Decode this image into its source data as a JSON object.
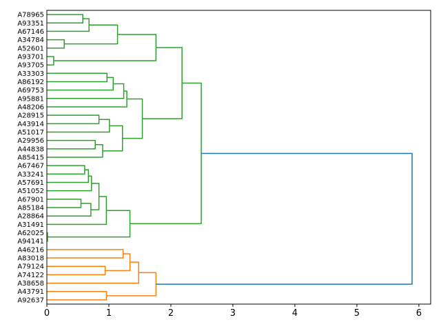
{
  "chart_data": {
    "type": "dendrogram",
    "orientation": "right",
    "title": "",
    "xlabel": "",
    "ylabel": "",
    "xlim": [
      0,
      6.19
    ],
    "xticks": [
      0,
      1,
      2,
      3,
      4,
      5,
      6
    ],
    "colors": {
      "green": "#2ca02c",
      "orange": "#ff7f0e",
      "root": "#1f77b4"
    },
    "tree": {
      "h": 5.89,
      "color": "root",
      "c": [
        {
          "h": 2.49,
          "color": "green",
          "c": [
            {
              "h": 2.18,
              "color": "green",
              "c": [
                {
                  "h": 1.76,
                  "color": "green",
                  "c": [
                    {
                      "h": 1.14,
                      "color": "green",
                      "c": [
                        {
                          "h": 0.68,
                          "color": "green",
                          "c": [
                            {
                              "h": 0.58,
                              "color": "green",
                              "c": [
                                "A78965",
                                "A93351"
                              ]
                            },
                            "A67146"
                          ]
                        },
                        {
                          "h": 0.28,
                          "color": "green",
                          "c": [
                            "A34784",
                            "A52601"
                          ]
                        }
                      ]
                    },
                    {
                      "h": 0.11,
                      "color": "green",
                      "c": [
                        "A93701",
                        "A93705"
                      ]
                    }
                  ]
                },
                {
                  "h": 1.54,
                  "color": "green",
                  "c": [
                    {
                      "h": 1.29,
                      "color": "green",
                      "c": [
                        {
                          "h": 1.24,
                          "color": "green",
                          "c": [
                            {
                              "h": 1.07,
                              "color": "green",
                              "c": [
                                {
                                  "h": 0.97,
                                  "color": "green",
                                  "c": [
                                    "A33303",
                                    "A86192"
                                  ]
                                },
                                "A69753"
                              ]
                            },
                            "A95881"
                          ]
                        },
                        "A48206"
                      ]
                    },
                    {
                      "h": 1.22,
                      "color": "green",
                      "c": [
                        {
                          "h": 1.01,
                          "color": "green",
                          "c": [
                            {
                              "h": 0.84,
                              "color": "green",
                              "c": [
                                "A28915",
                                "A43914"
                              ]
                            },
                            "A51017"
                          ]
                        },
                        {
                          "h": 0.9,
                          "color": "green",
                          "c": [
                            {
                              "h": 0.78,
                              "color": "green",
                              "c": [
                                "A29956",
                                "A44838"
                              ]
                            },
                            "A85415"
                          ]
                        }
                      ]
                    }
                  ]
                }
              ]
            },
            {
              "h": 1.34,
              "color": "green",
              "c": [
                {
                  "h": 0.96,
                  "color": "green",
                  "c": [
                    {
                      "h": 0.84,
                      "color": "green",
                      "c": [
                        {
                          "h": 0.72,
                          "color": "green",
                          "c": [
                            {
                              "h": 0.67,
                              "color": "green",
                              "c": [
                                {
                                  "h": 0.61,
                                  "color": "green",
                                  "c": [
                                    "A67467",
                                    "A33241"
                                  ]
                                },
                                "A57691"
                              ]
                            },
                            "A51052"
                          ]
                        },
                        {
                          "h": 0.71,
                          "color": "green",
                          "c": [
                            {
                              "h": 0.55,
                              "color": "green",
                              "c": [
                                "A67901",
                                "A85184"
                              ]
                            },
                            "A28864"
                          ]
                        }
                      ]
                    },
                    "A31491"
                  ]
                },
                {
                  "h": 0.01,
                  "color": "green",
                  "c": [
                    "A62025",
                    "A94141"
                  ]
                }
              ]
            }
          ]
        },
        {
          "h": 1.76,
          "color": "orange",
          "c": [
            {
              "h": 1.48,
              "color": "orange",
              "c": [
                {
                  "h": 1.34,
                  "color": "orange",
                  "c": [
                    {
                      "h": 1.23,
                      "color": "orange",
                      "c": [
                        "A46216",
                        "A83018"
                      ]
                    },
                    {
                      "h": 0.94,
                      "color": "orange",
                      "c": [
                        "A79124",
                        "A74122"
                      ]
                    }
                  ]
                },
                "A38658"
              ]
            },
            {
              "h": 0.96,
              "color": "orange",
              "c": [
                "A43791",
                "A92637"
              ]
            }
          ]
        }
      ]
    }
  }
}
